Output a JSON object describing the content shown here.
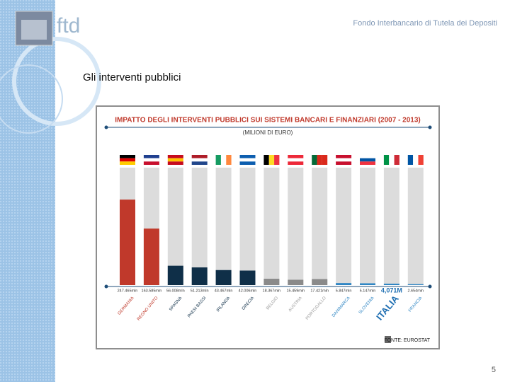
{
  "header": {
    "logo_text": "ftd",
    "org_name": "Fondo Interbancario di Tutela dei Depositi"
  },
  "slide_title": "Gli interventi pubblici",
  "page_number": "5",
  "chart_data": {
    "type": "bar",
    "title": "IMPATTO DEGLI INTERVENTI PUBBLICI SUI SISTEMI BANCARI E FINANZIARI (2007 - 2013)",
    "subtitle": "(MILIONI DI EURO)",
    "source": "FONTE: EUROSTAT",
    "categories": [
      "GERMANIA",
      "REGNO UNITO",
      "SPAGNA",
      "PAESI BASSI",
      "IRLANDA",
      "GRECIA",
      "BELGIO",
      "AUSTRIA",
      "PORTOGALLO",
      "DANIMARCA",
      "SLOVENIA",
      "ITALIA",
      "FRANCIA"
    ],
    "values": [
      247465,
      163585,
      56008,
      51213,
      43467,
      42006,
      18367,
      15459,
      17421,
      5847,
      5147,
      4071,
      2654
    ],
    "value_labels": [
      "247.465mln",
      "163.585mln",
      "56.008mln",
      "51.213mln",
      "43.467mln",
      "42.006mln",
      "18.367mln",
      "15.459mln",
      "17.421mln",
      "5.847mln",
      "5.147mln",
      "4,071M",
      "2.654mln"
    ],
    "colors": [
      "#c0392b",
      "#c0392b",
      "#0f2f48",
      "#0f2f48",
      "#0f2f48",
      "#0f2f48",
      "#8a8a8a",
      "#8a8a8a",
      "#8a8a8a",
      "#2f86c4",
      "#2f86c4",
      "#2f86c4",
      "#2f86c4"
    ],
    "label_colors": [
      "#c0392b",
      "#c0392b",
      "#0f2f48",
      "#0f2f48",
      "#0f2f48",
      "#0f2f48",
      "#9a9a9a",
      "#9a9a9a",
      "#9a9a9a",
      "#2f86c4",
      "#2f86c4",
      "#1f6fb2",
      "#2f86c4"
    ],
    "ylim": [
      0,
      340000
    ]
  }
}
